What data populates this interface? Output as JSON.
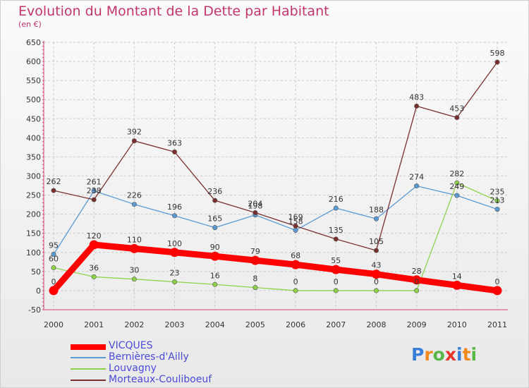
{
  "chart_data": {
    "type": "line",
    "title": "Evolution du Montant de la Dette par Habitant",
    "subtitle": "(en €)",
    "x": [
      "2000",
      "2001",
      "2002",
      "2003",
      "2004",
      "2005",
      "2006",
      "2007",
      "2008",
      "2009",
      "2010",
      "2011"
    ],
    "yticks": [
      "650",
      "600",
      "550",
      "500",
      "450",
      "400",
      "350",
      "300",
      "250",
      "200",
      "150",
      "100",
      "50",
      "0",
      "-50"
    ],
    "ylim": [
      -50,
      650
    ],
    "grid": true,
    "legend_position": "bottom-left",
    "series": [
      {
        "name": "VICQUES",
        "color": "#ff0000",
        "values": [
          0,
          120,
          110,
          100,
          90,
          79,
          68,
          55,
          43,
          28,
          14,
          0
        ],
        "labels": [
          "0",
          "120",
          "110",
          "100",
          "90",
          "79",
          "68",
          "55",
          "43",
          "28",
          "14",
          "0"
        ]
      },
      {
        "name": "Bernières-d'Ailly",
        "color": "#5b9bd5",
        "values": [
          95,
          261,
          226,
          196,
          165,
          198,
          158,
          216,
          188,
          274,
          249,
          213
        ],
        "labels": [
          "95",
          "261",
          "226",
          "196",
          "165",
          "198",
          "158",
          "216",
          "188",
          "274",
          "249",
          "213"
        ]
      },
      {
        "name": "Louvagny",
        "color": "#8ed24a",
        "values": [
          60,
          36,
          30,
          23,
          16,
          8,
          0,
          0,
          0,
          0,
          282,
          235
        ],
        "labels": [
          "60",
          "36",
          "30",
          "23",
          "16",
          "8",
          "0",
          "0",
          "0",
          "0",
          "282",
          "235"
        ]
      },
      {
        "name": "Morteaux-Couliboeuf",
        "color": "#7a2f2f",
        "values": [
          262,
          238,
          392,
          363,
          236,
          204,
          169,
          135,
          105,
          483,
          453,
          598
        ],
        "labels": [
          "262",
          "238",
          "392",
          "363",
          "236",
          "204",
          "169",
          "135",
          "105",
          "483",
          "453",
          "598"
        ]
      }
    ]
  },
  "logo": {
    "letters": [
      "P",
      "r",
      "o",
      "x",
      "i",
      "t",
      "i"
    ],
    "colors": [
      "#3a7fd6",
      "#f08a1c",
      "#57b847",
      "#e8332b",
      "#3a7fd6",
      "#f08a1c",
      "#57b847"
    ]
  }
}
